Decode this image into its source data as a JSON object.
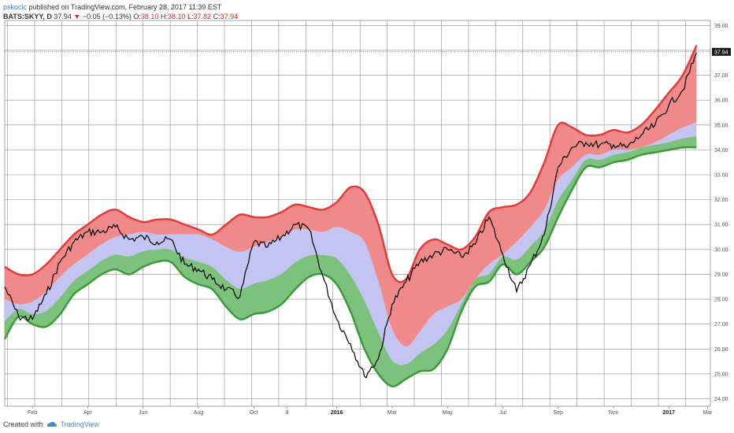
{
  "header": {
    "user": "pskocic",
    "published": "published on TradingView.com, February 28, 2017 11:39 EST",
    "ticker": "BATS:SKYY, D",
    "last": "37.94",
    "change_arrow": "▼",
    "change": "−0.05 (−0.13%)",
    "o_label": "O:",
    "o_val": "38.10",
    "h_label": "H:",
    "h_val": "38.10",
    "l_label": "L:",
    "l_val": "37.82",
    "c_label": "C:",
    "c_val": "37.94"
  },
  "footer": {
    "created_with": "Created with",
    "brand": "TradingView",
    "logo_icon": "cloud-icon"
  },
  "colors": {
    "upper_band": "#f08a8a",
    "upper_line": "#e03c3c",
    "middle_band": "#c4c4f2",
    "lower_band": "#7cc27c",
    "lower_line": "#3a9a3a",
    "price_line": "#000000",
    "grid": "#8c8c8c"
  },
  "chart_data": {
    "type": "line",
    "title": "",
    "ylim": [
      23.7,
      39.2
    ],
    "xlim": [
      0,
      25.5
    ],
    "grid": true,
    "last_price_label": "37.94",
    "y_ticks": [
      "24.00",
      "25.00",
      "26.00",
      "27.00",
      "28.00",
      "29.00",
      "30.00",
      "31.00",
      "32.00",
      "33.00",
      "34.00",
      "35.00",
      "36.00",
      "37.00",
      "38.00",
      "39.00"
    ],
    "x_ticks": [
      {
        "label": "Feb",
        "x": 1,
        "bold": false
      },
      {
        "label": "Apr",
        "x": 3,
        "bold": false
      },
      {
        "label": "Jun",
        "x": 5,
        "bold": false
      },
      {
        "label": "Aug",
        "x": 7,
        "bold": false
      },
      {
        "label": "Oct",
        "x": 9,
        "bold": false
      },
      {
        "label": "9",
        "x": 10.2,
        "bold": false
      },
      {
        "label": "2016",
        "x": 12,
        "bold": true
      },
      {
        "label": "Mar",
        "x": 14,
        "bold": false
      },
      {
        "label": "May",
        "x": 16,
        "bold": false
      },
      {
        "label": "Jul",
        "x": 18,
        "bold": false
      },
      {
        "label": "Sep",
        "x": 20,
        "bold": false
      },
      {
        "label": "Nov",
        "x": 22,
        "bold": false
      },
      {
        "label": "2017",
        "x": 24,
        "bold": true
      },
      {
        "label": "Mar",
        "x": 25.4,
        "bold": false
      }
    ],
    "x": [
      0,
      0.5,
      1,
      1.5,
      2,
      2.5,
      3,
      3.5,
      4,
      4.5,
      5,
      5.5,
      6,
      6.5,
      7,
      7.5,
      8,
      8.5,
      9,
      9.5,
      10,
      10.5,
      11,
      11.5,
      12,
      12.5,
      13,
      13.5,
      14,
      14.5,
      15,
      15.5,
      16,
      16.5,
      17,
      17.5,
      18,
      18.5,
      19,
      19.5,
      20,
      20.5,
      21,
      21.5,
      22,
      22.5,
      23,
      23.5,
      24,
      24.5,
      25
    ],
    "series": [
      {
        "key": "upper",
        "values": [
          29.3,
          29.0,
          29.0,
          29.4,
          30.0,
          30.6,
          31.0,
          31.4,
          31.6,
          31.3,
          31.1,
          31.2,
          31.2,
          31.0,
          30.8,
          30.6,
          31.0,
          31.4,
          31.3,
          31.3,
          31.5,
          31.8,
          31.7,
          31.6,
          31.9,
          32.5,
          32.3,
          31.0,
          29.0,
          28.8,
          30.0,
          30.4,
          30.2,
          30.0,
          30.5,
          31.5,
          31.7,
          31.8,
          32.3,
          33.5,
          35.0,
          34.9,
          34.6,
          34.6,
          34.8,
          34.7,
          35.0,
          35.6,
          36.3,
          37.0,
          38.2
        ]
      },
      {
        "key": "middle",
        "values": [
          28.0,
          27.8,
          27.9,
          28.3,
          28.9,
          29.4,
          29.8,
          30.2,
          30.5,
          30.6,
          30.7,
          30.6,
          30.6,
          30.6,
          30.6,
          30.4,
          30.1,
          29.9,
          30.1,
          30.3,
          30.5,
          30.8,
          30.8,
          30.7,
          30.9,
          30.7,
          30.3,
          28.7,
          26.8,
          26.1,
          26.7,
          27.4,
          27.7,
          28.0,
          28.8,
          29.4,
          29.8,
          30.3,
          30.9,
          31.6,
          32.8,
          33.3,
          33.8,
          33.8,
          34.0,
          34.0,
          34.1,
          34.3,
          34.6,
          34.9,
          35.1
        ]
      },
      {
        "key": "lower",
        "values": [
          26.4,
          27.3,
          27.0,
          26.9,
          27.4,
          28.2,
          28.6,
          29.0,
          29.2,
          29.0,
          29.3,
          29.5,
          29.5,
          28.9,
          28.6,
          28.4,
          27.7,
          27.2,
          27.4,
          27.5,
          27.8,
          28.4,
          28.9,
          29.0,
          28.6,
          27.5,
          26.0,
          25.0,
          24.5,
          24.8,
          25.1,
          25.2,
          26.0,
          27.5,
          28.5,
          28.7,
          29.4,
          29.0,
          29.5,
          30.1,
          31.3,
          32.4,
          33.3,
          33.3,
          33.5,
          33.6,
          33.8,
          33.9,
          34.0,
          34.1,
          34.1
        ]
      },
      {
        "key": "price",
        "values": [
          28.5,
          27.3,
          27.2,
          28.2,
          29.5,
          30.3,
          30.7,
          30.7,
          30.9,
          30.4,
          30.5,
          30.3,
          30.4,
          29.4,
          29.2,
          28.8,
          28.4,
          28.1,
          30.3,
          30.1,
          30.5,
          31.0,
          30.8,
          28.9,
          27.2,
          26.2,
          24.9,
          25.6,
          27.8,
          28.7,
          29.5,
          29.8,
          30.0,
          29.7,
          30.2,
          31.3,
          29.8,
          28.3,
          29.4,
          30.6,
          33.3,
          34.1,
          34.3,
          34.2,
          34.2,
          34.1,
          34.6,
          35.0,
          35.8,
          36.4,
          37.9
        ]
      }
    ]
  }
}
